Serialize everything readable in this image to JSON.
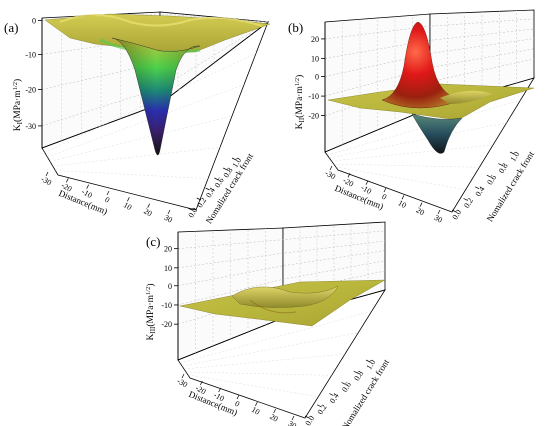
{
  "chart_data": [
    {
      "type": "surface",
      "panel_label": "(a)",
      "zlabel": "K_I(MPa·m^1/2)",
      "zlabel_main": "K",
      "zlabel_sub": "I",
      "zlabel_rest": "(MPa·m",
      "zlabel_sup": "1/2",
      "zlabel_close": ")",
      "zlim": [
        -35,
        0
      ],
      "zticks": [
        "0",
        "-10",
        "-20",
        "-30"
      ],
      "xlabel": "Distance(mm)",
      "xticks": [
        "-30",
        "-20",
        "-10",
        "0",
        "10",
        "20",
        "30"
      ],
      "ylabel": "Nomalized crack front",
      "yticks": [
        "0.0",
        "0.2",
        "0.4",
        "0.6",
        "0.8",
        "1.0"
      ],
      "surface": {
        "peak_value": -33,
        "peak_distance": 0,
        "peak_crack_front": 0.5
      }
    },
    {
      "type": "surface",
      "panel_label": "(b)",
      "zlabel_main": "K",
      "zlabel_sub": "II",
      "zlabel_rest": "(MPa·m",
      "zlabel_sup": "1/2",
      "zlabel_close": ")",
      "zlim": [
        -25,
        25
      ],
      "zticks": [
        "20",
        "10",
        "0",
        "-10",
        "-20"
      ],
      "xlabel": "Distance(mm)",
      "xticks": [
        "-30",
        "-20",
        "-10",
        "0",
        "10",
        "20",
        "30"
      ],
      "ylabel": "Nomalized crack front",
      "yticks": [
        "0.0",
        "0.2",
        "0.4",
        "0.6",
        "0.8",
        "1.0"
      ],
      "surface": {
        "peak_value": 24,
        "trough_value": -22
      }
    },
    {
      "type": "surface",
      "panel_label": "(c)",
      "zlabel_main": "K",
      "zlabel_sub": "III",
      "zlabel_rest": "(MPa·m",
      "zlabel_sup": "1/2",
      "zlabel_close": ")",
      "zlim": [
        -25,
        25
      ],
      "zticks": [
        "20",
        "10",
        "0",
        "-10",
        "-20"
      ],
      "xlabel": "Distance(mm)",
      "xticks": [
        "-30",
        "-20",
        "-10",
        "0",
        "10",
        "20",
        "30"
      ],
      "ylabel": "Nomalized crack front",
      "yticks": [
        "0.0",
        "0.2",
        "0.4",
        "0.6",
        "0.8",
        "1.0"
      ],
      "surface": {
        "peak_value": 3,
        "trough_value": -3
      }
    }
  ]
}
